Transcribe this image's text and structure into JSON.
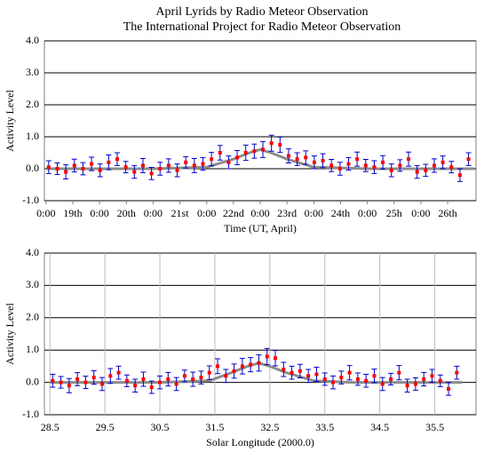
{
  "chart_data": [
    {
      "type": "errorbar-scatter",
      "title": "April Lyrids by Radio Meteor Observation",
      "subtitle": "The International Project for Radio Meteor Observation",
      "x_label": "Time (UT, April)",
      "y_label": "Activity Level",
      "xlim": [
        17.97,
        26.03
      ],
      "ylim": [
        -1,
        4
      ],
      "xticks": [
        {
          "value": 18,
          "label": "0:00"
        },
        {
          "value": 18.5,
          "label": "19th"
        },
        {
          "value": 19,
          "label": "0:00"
        },
        {
          "value": 19.5,
          "label": "20th"
        },
        {
          "value": 20,
          "label": "0:00"
        },
        {
          "value": 20.5,
          "label": "21st"
        },
        {
          "value": 21,
          "label": "0:00"
        },
        {
          "value": 21.5,
          "label": "22nd"
        },
        {
          "value": 22,
          "label": "0:00"
        },
        {
          "value": 22.5,
          "label": "23rd"
        },
        {
          "value": 23,
          "label": "0:00"
        },
        {
          "value": 23.5,
          "label": "24th"
        },
        {
          "value": 24,
          "label": "0:00"
        },
        {
          "value": 24.5,
          "label": "25h"
        },
        {
          "value": 25,
          "label": "0:00"
        },
        {
          "value": 25.5,
          "label": "26th"
        }
      ],
      "yticks": [
        {
          "value": 4,
          "label": "4.0"
        },
        {
          "value": 3,
          "label": "3.0"
        },
        {
          "value": 2,
          "label": "2.0"
        },
        {
          "value": 1,
          "label": "1.0"
        },
        {
          "value": 0,
          "label": "0.0"
        },
        {
          "value": -1,
          "label": "-1.0"
        }
      ],
      "grid_x": false,
      "grid_y": true,
      "x": [
        18.05,
        18.21,
        18.37,
        18.53,
        18.69,
        18.85,
        19.01,
        19.17,
        19.33,
        19.49,
        19.65,
        19.81,
        19.97,
        20.13,
        20.29,
        20.45,
        20.61,
        20.77,
        20.93,
        21.09,
        21.25,
        21.41,
        21.57,
        21.73,
        21.89,
        22.05,
        22.21,
        22.37,
        22.53,
        22.69,
        22.85,
        23.01,
        23.17,
        23.33,
        23.49,
        23.65,
        23.81,
        23.97,
        24.13,
        24.29,
        24.45,
        24.61,
        24.77,
        24.93,
        25.09,
        25.25,
        25.41,
        25.57,
        25.73,
        25.89
      ],
      "values": [
        0.05,
        0.0,
        -0.1,
        0.1,
        0.0,
        0.15,
        -0.05,
        0.2,
        0.3,
        0.05,
        -0.1,
        0.1,
        -0.15,
        0.0,
        0.1,
        -0.05,
        0.2,
        0.1,
        0.15,
        0.3,
        0.5,
        0.2,
        0.35,
        0.5,
        0.55,
        0.6,
        0.8,
        0.75,
        0.4,
        0.3,
        0.35,
        0.2,
        0.25,
        0.1,
        0.0,
        0.15,
        0.3,
        0.1,
        0.05,
        0.2,
        -0.05,
        0.1,
        0.3,
        -0.1,
        -0.05,
        0.1,
        0.2,
        0.05,
        -0.2,
        0.3
      ],
      "errors": [
        0.2,
        0.18,
        0.22,
        0.2,
        0.19,
        0.21,
        0.2,
        0.23,
        0.2,
        0.18,
        0.2,
        0.22,
        0.19,
        0.2,
        0.21,
        0.2,
        0.18,
        0.22,
        0.2,
        0.21,
        0.23,
        0.2,
        0.22,
        0.24,
        0.22,
        0.25,
        0.25,
        0.24,
        0.22,
        0.2,
        0.21,
        0.2,
        0.22,
        0.19,
        0.2,
        0.2,
        0.22,
        0.19,
        0.2,
        0.21,
        0.2,
        0.18,
        0.22,
        0.2,
        0.19,
        0.21,
        0.2,
        0.18,
        0.2,
        0.2
      ],
      "point_color": "#ff0000",
      "error_color": "#0000cc",
      "fit": {
        "color": "#8c8c8c",
        "x": [
          18,
          19,
          20,
          21,
          21.5,
          21.8,
          22.0,
          22.2,
          22.5,
          23,
          24,
          25,
          26
        ],
        "values": [
          0,
          0,
          0,
          0.05,
          0.3,
          0.5,
          0.6,
          0.5,
          0.3,
          0.05,
          0,
          0,
          0
        ]
      }
    },
    {
      "type": "errorbar-scatter",
      "x_label": "Solar Longitude (2000.0)",
      "y_label": "Activity Level",
      "xlim": [
        28.4,
        36.25
      ],
      "ylim": [
        -1,
        4
      ],
      "xticks": [
        28.5,
        29.5,
        30.5,
        31.5,
        32.5,
        33.5,
        34.5,
        35.5
      ],
      "yticks": [
        {
          "value": 4,
          "label": "4.0"
        },
        {
          "value": 3,
          "label": "3.0"
        },
        {
          "value": 2,
          "label": "2.0"
        },
        {
          "value": 1,
          "label": "1.0"
        },
        {
          "value": 0,
          "label": "0.0"
        },
        {
          "value": -1,
          "label": "-1.0"
        }
      ],
      "grid_x": true,
      "grid_y": true,
      "x": [
        28.55,
        28.7,
        28.85,
        29.0,
        29.15,
        29.3,
        29.45,
        29.6,
        29.75,
        29.9,
        30.05,
        30.2,
        30.35,
        30.5,
        30.65,
        30.8,
        30.95,
        31.1,
        31.25,
        31.4,
        31.55,
        31.7,
        31.85,
        32.0,
        32.15,
        32.3,
        32.45,
        32.6,
        32.75,
        32.9,
        33.05,
        33.2,
        33.35,
        33.5,
        33.65,
        33.8,
        33.95,
        34.1,
        34.25,
        34.4,
        34.55,
        34.7,
        34.85,
        35.0,
        35.15,
        35.3,
        35.45,
        35.6,
        35.75,
        35.9
      ],
      "values": [
        0.05,
        0.0,
        -0.1,
        0.1,
        0.0,
        0.15,
        -0.05,
        0.2,
        0.3,
        0.05,
        -0.1,
        0.1,
        -0.15,
        0.0,
        0.1,
        -0.05,
        0.2,
        0.1,
        0.15,
        0.3,
        0.5,
        0.2,
        0.35,
        0.5,
        0.55,
        0.6,
        0.8,
        0.75,
        0.4,
        0.3,
        0.35,
        0.2,
        0.25,
        0.1,
        0.0,
        0.15,
        0.3,
        0.1,
        0.05,
        0.2,
        -0.05,
        0.1,
        0.3,
        -0.1,
        -0.05,
        0.1,
        0.2,
        0.05,
        -0.2,
        0.3
      ],
      "errors": [
        0.2,
        0.18,
        0.22,
        0.2,
        0.19,
        0.21,
        0.2,
        0.23,
        0.2,
        0.18,
        0.2,
        0.22,
        0.19,
        0.2,
        0.21,
        0.2,
        0.18,
        0.22,
        0.2,
        0.21,
        0.23,
        0.2,
        0.22,
        0.24,
        0.22,
        0.25,
        0.25,
        0.24,
        0.22,
        0.2,
        0.21,
        0.2,
        0.22,
        0.19,
        0.2,
        0.2,
        0.22,
        0.19,
        0.2,
        0.21,
        0.2,
        0.18,
        0.22,
        0.2,
        0.19,
        0.21,
        0.2,
        0.18,
        0.2,
        0.2
      ],
      "point_color": "#ff0000",
      "error_color": "#0000cc",
      "fit": {
        "color": "#8c8c8c",
        "x": [
          28.5,
          29.5,
          30.5,
          31.4,
          31.8,
          32.1,
          32.3,
          32.5,
          32.8,
          33.3,
          34,
          35,
          36
        ],
        "values": [
          0,
          0,
          0,
          0.05,
          0.3,
          0.5,
          0.6,
          0.5,
          0.3,
          0.05,
          0,
          0,
          0
        ]
      }
    }
  ]
}
